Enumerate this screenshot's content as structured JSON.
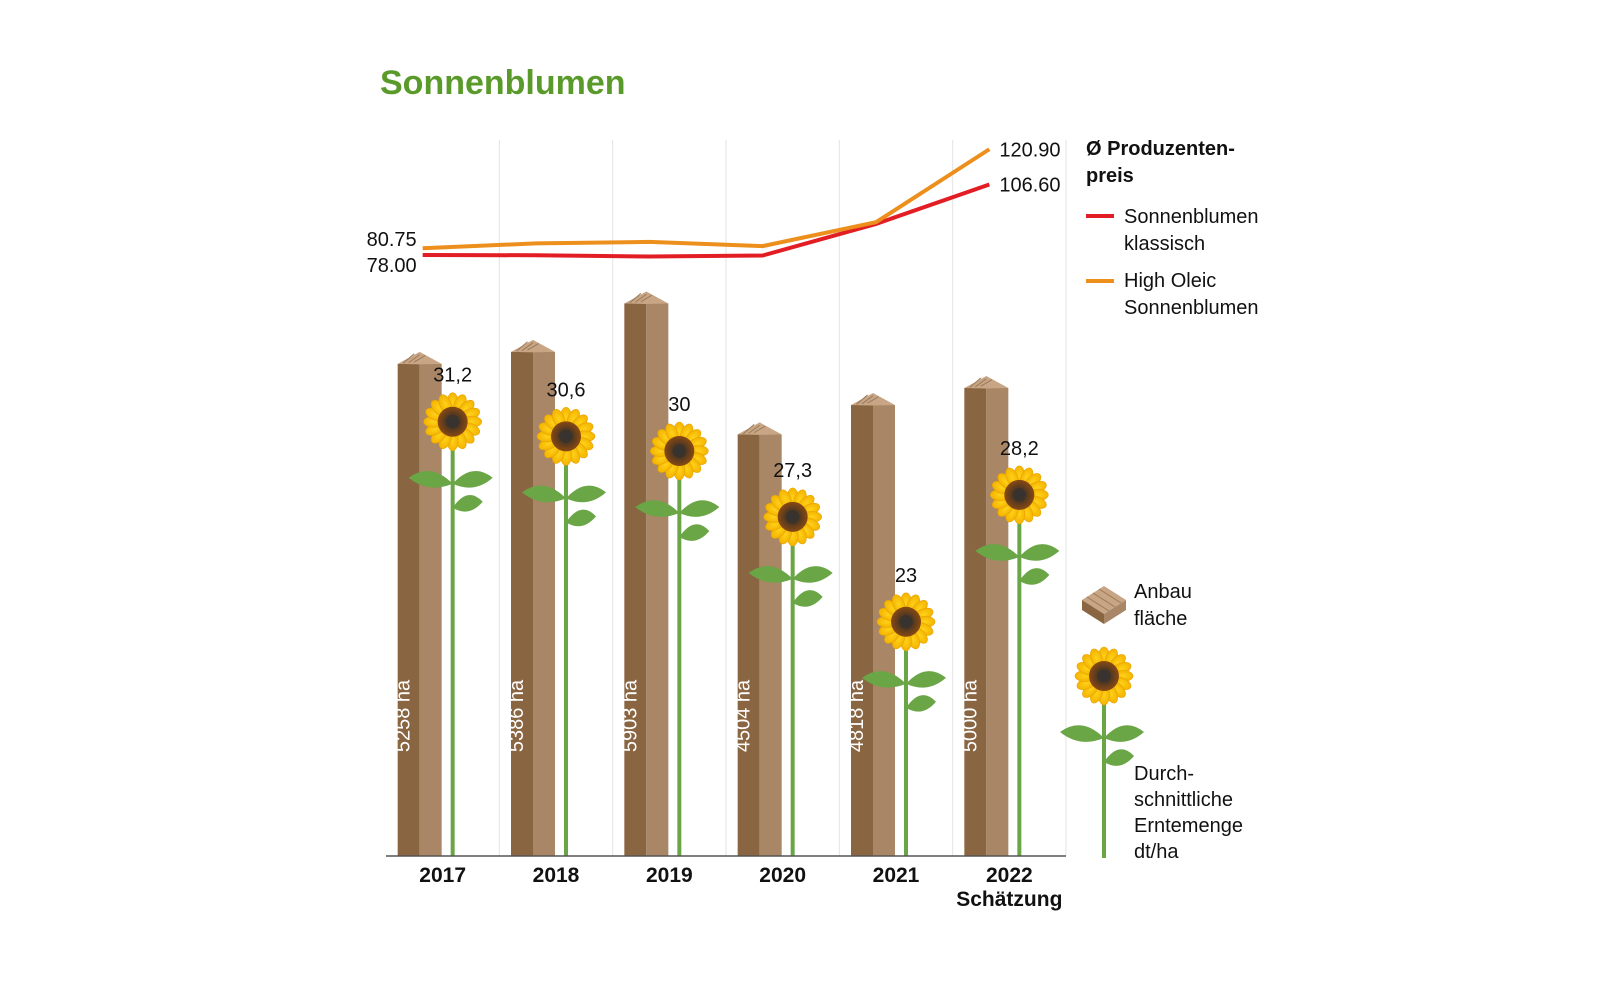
{
  "title": "Sonnenblumen",
  "chart_data": {
    "type": "bar",
    "categories": [
      "2017",
      "2018",
      "2019",
      "2020",
      "2021",
      "2022"
    ],
    "category_notes": [
      "",
      "",
      "",
      "",
      "",
      "Schätzung"
    ],
    "area": {
      "legend_label_1": "Anbau",
      "legend_label_2": "fläche",
      "values": [
        5258,
        5386,
        5903,
        4504,
        4818,
        5000
      ],
      "labels": [
        "5258 ha",
        "5386 ha",
        "5903 ha",
        "4504 ha",
        "4818 ha",
        "5000 ha"
      ]
    },
    "yield": {
      "legend_lines": [
        "Durch-",
        "schnittliche",
        "Erntemenge",
        "dt/ha"
      ],
      "values": [
        31.2,
        30.6,
        30,
        27.3,
        23,
        28.2
      ],
      "labels": [
        "31,2",
        "30,6",
        "30",
        "27,3",
        "23",
        "28,2"
      ]
    },
    "price": {
      "title_lines": [
        "Ø Produzenten-",
        "preis"
      ],
      "series": [
        {
          "name_lines": [
            "Sonnenblumen",
            "klassisch"
          ],
          "color": "#e21d24",
          "values": [
            78.0,
            77.9,
            77.4,
            77.8,
            90.6,
            106.6
          ],
          "start_label": "78.00",
          "end_label": "106.60"
        },
        {
          "name_lines": [
            "High Oleic",
            "Sonnenblumen"
          ],
          "color": "#ec8f1c",
          "values": [
            80.75,
            82.7,
            83.3,
            81.6,
            91.3,
            120.9
          ],
          "start_label": "80.75",
          "end_label": "120.90"
        }
      ]
    }
  }
}
